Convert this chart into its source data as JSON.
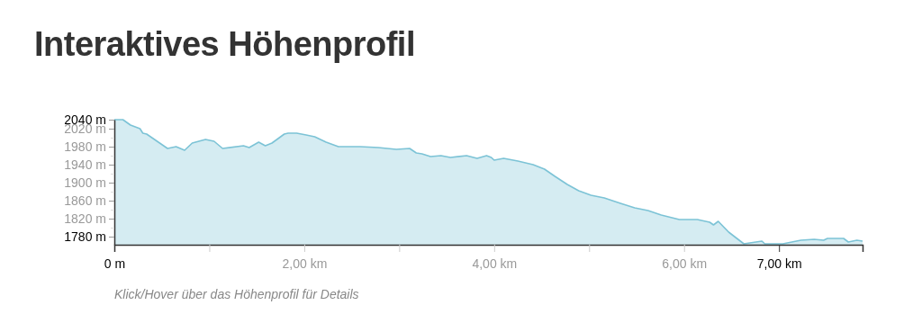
{
  "chart_data": {
    "type": "area",
    "title": "Interaktives Höhenprofil",
    "annotations": [
      "Klick/Hover über das Höhenprofil für Details"
    ],
    "x": [
      0,
      0.09,
      0.17,
      0.27,
      0.3,
      0.34,
      0.56,
      0.65,
      0.74,
      0.82,
      0.96,
      1.05,
      1.14,
      1.36,
      1.42,
      1.52,
      1.59,
      1.66,
      1.79,
      1.83,
      1.92,
      2.02,
      2.11,
      2.23,
      2.36,
      2.59,
      2.78,
      2.97,
      3.11,
      3.18,
      3.24,
      3.33,
      3.44,
      3.54,
      3.71,
      3.82,
      3.92,
      3.97,
      4.0,
      4.1,
      4.25,
      4.41,
      4.53,
      4.64,
      4.77,
      4.89,
      5.02,
      5.16,
      5.33,
      5.48,
      5.62,
      5.76,
      5.95,
      6.14,
      6.27,
      6.31,
      6.36,
      6.47,
      6.63,
      6.82,
      6.85,
      7.04,
      7.23,
      7.37,
      7.47,
      7.51,
      7.68,
      7.73,
      7.82,
      7.88
    ],
    "series": [
      {
        "color": "#7cc3d6",
        "values": [
          2040,
          2040,
          2028,
          2020,
          2010,
          2008,
          1976,
          1980,
          1972,
          1988,
          1996,
          1992,
          1976,
          1982,
          1978,
          1990,
          1982,
          1988,
          2008,
          2010,
          2010,
          2006,
          2002,
          1990,
          1980,
          1980,
          1978,
          1974,
          1976,
          1966,
          1964,
          1958,
          1960,
          1956,
          1960,
          1954,
          1960,
          1956,
          1950,
          1954,
          1948,
          1940,
          1930,
          1914,
          1896,
          1882,
          1872,
          1866,
          1854,
          1844,
          1838,
          1828,
          1818,
          1818,
          1812,
          1806,
          1814,
          1790,
          1764,
          1770,
          1764,
          1764,
          1772,
          1774,
          1772,
          1776,
          1776,
          1768,
          1772,
          1770
        ]
      }
    ],
    "xlim": [
      0,
      7.88
    ],
    "xticks": [
      {
        "value": 0,
        "label": "0 m"
      },
      {
        "value": 1,
        "label": null
      },
      {
        "value": 2,
        "label": "2,00 km"
      },
      {
        "value": 3,
        "label": null
      },
      {
        "value": 4,
        "label": "4,00 km"
      },
      {
        "value": 5,
        "label": null
      },
      {
        "value": 6,
        "label": "6,00 km"
      },
      {
        "value": 7,
        "label": "7,00 km"
      }
    ],
    "ylim": [
      1762,
      2040
    ],
    "yticks": [
      {
        "value": 1780,
        "label": "1780 m"
      },
      {
        "value": 1800,
        "label": null
      },
      {
        "value": 1820,
        "label": "1820 m"
      },
      {
        "value": 1840,
        "label": null
      },
      {
        "value": 1860,
        "label": "1860 m"
      },
      {
        "value": 1880,
        "label": null
      },
      {
        "value": 1900,
        "label": "1900 m"
      },
      {
        "value": 1920,
        "label": null
      },
      {
        "value": 1940,
        "label": "1940 m"
      },
      {
        "value": 1960,
        "label": null
      },
      {
        "value": 1980,
        "label": "1980 m"
      },
      {
        "value": 2000,
        "label": null
      },
      {
        "value": 2020,
        "label": "2020 m"
      },
      {
        "value": 2040,
        "label": "2040 m"
      }
    ],
    "grid": false
  }
}
